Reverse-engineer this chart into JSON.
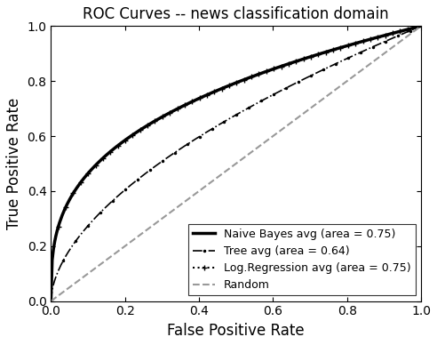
{
  "title": "ROC Curves -- news classification domain",
  "xlabel": "False Positive Rate",
  "ylabel": "True Positive Rate",
  "xlim": [
    0.0,
    1.0
  ],
  "ylim": [
    0.0,
    1.0
  ],
  "xticks": [
    0.0,
    0.2,
    0.4,
    0.6,
    0.8,
    1.0
  ],
  "yticks": [
    0.0,
    0.2,
    0.4,
    0.6,
    0.8,
    1.0
  ],
  "naive_bayes_auc": 0.75,
  "tree_auc": 0.64,
  "logreg_auc": 0.75,
  "legend_loc": "lower right",
  "figsize": [
    4.92,
    3.88
  ],
  "dpi": 100,
  "title_fontsize": 12,
  "label_fontsize": 12,
  "tick_fontsize": 10,
  "legend_fontsize": 9
}
